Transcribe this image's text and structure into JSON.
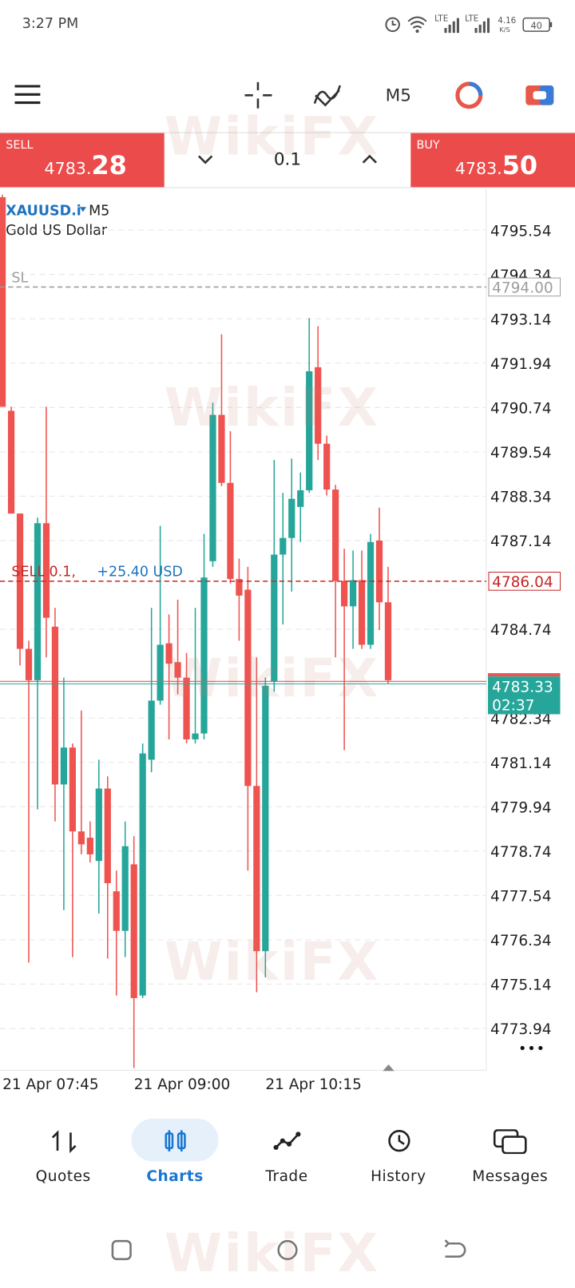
{
  "status_bar": {
    "time": "3:27 PM",
    "lte_1": "LTE",
    "lte_2": "LTE",
    "network_speed": "4.16",
    "speed_unit": "K/S",
    "battery": "40"
  },
  "toolbar": {
    "timeframe": "M5"
  },
  "trade_panel": {
    "sell": {
      "label": "SELL",
      "price_main": "4783.",
      "price_big": "28"
    },
    "volume": "0.1",
    "buy": {
      "label": "BUY",
      "price_main": "4783.",
      "price_big": "50"
    }
  },
  "chart_data": {
    "type": "candlestick",
    "symbol": "XAUUSD.i",
    "timeframe": "M5",
    "description": "Gold US Dollar",
    "categories": [
      "21 Apr 07:45",
      null,
      null,
      null,
      null,
      null,
      null,
      null,
      null,
      null,
      null,
      null,
      null,
      null,
      null,
      "21 Apr 09:00",
      null,
      null,
      null,
      null,
      null,
      null,
      null,
      null,
      null,
      null,
      null,
      null,
      null,
      null,
      "21 Apr 10:15",
      null,
      null,
      null,
      null,
      null,
      null,
      null,
      null,
      null,
      null,
      null,
      null,
      null,
      null
    ],
    "open": [
      4796.43,
      4790.65,
      4787.87,
      4784.21,
      4783.36,
      4787.61,
      4784.81,
      4780.54,
      4781.54,
      4779.27,
      4779.1,
      4778.47,
      4780.43,
      4777.65,
      4776.58,
      4778.38,
      4774.83,
      4781.21,
      4782.81,
      4784.36,
      4783.85,
      4783.43,
      4781.76,
      4781.92,
      4786.58,
      4790.54,
      4788.7,
      4786.1,
      4785.81,
      4780.5,
      4776.03,
      4783.32,
      4786.76,
      4787.21,
      4788.05,
      4788.5,
      4791.83,
      4789.76,
      4788.52,
      4786.05,
      4785.36,
      4786.07,
      4784.32,
      4787.14,
      4785.47
    ],
    "high": [
      4796.5,
      4790.76,
      4787.87,
      4784.43,
      4787.76,
      4790.76,
      4785.32,
      4783.43,
      4781.65,
      4782.54,
      4779.54,
      4781.21,
      4780.76,
      4778.21,
      4779.54,
      4779.14,
      4781.65,
      4785.32,
      4787.54,
      4785.14,
      4785.54,
      4784.1,
      4785.32,
      4787.32,
      4790.87,
      4792.72,
      4790.1,
      4786.65,
      4786.43,
      4783.98,
      4783.43,
      4789.32,
      4788.43,
      4789.36,
      4788.98,
      4793.16,
      4792.94,
      4789.98,
      4788.65,
      4786.92,
      4786.87,
      4786.87,
      4787.32,
      4788.03,
      4786.43
    ],
    "low": [
      4790.76,
      4787.87,
      4783.76,
      4775.72,
      4779.87,
      4783.98,
      4779.54,
      4777.14,
      4775.87,
      4778.65,
      4778.43,
      4777.05,
      4775.83,
      4774.83,
      4775.87,
      4772.87,
      4774.76,
      4780.87,
      4782.7,
      4781.76,
      4782.98,
      4781.65,
      4781.65,
      4781.76,
      4786.43,
      4788.61,
      4785.98,
      4784.43,
      4778.21,
      4774.92,
      4775.32,
      4783.05,
      4784.87,
      4785.76,
      4787.1,
      4788.43,
      4789.32,
      4788.36,
      4783.98,
      4781.47,
      4784.21,
      4784.21,
      4784.21,
      4784.72,
      4783.27
    ],
    "close": [
      4790.76,
      4787.87,
      4784.21,
      4783.36,
      4787.61,
      4785.05,
      4780.54,
      4781.54,
      4779.27,
      4778.92,
      4778.65,
      4780.43,
      4777.87,
      4776.58,
      4778.87,
      4774.76,
      4781.38,
      4782.81,
      4784.32,
      4783.81,
      4783.43,
      4781.76,
      4781.92,
      4786.14,
      4790.54,
      4788.7,
      4786.1,
      4785.65,
      4780.5,
      4776.03,
      4783.21,
      4786.76,
      4787.21,
      4788.27,
      4788.5,
      4791.72,
      4789.76,
      4788.52,
      4786.05,
      4785.36,
      4786.07,
      4784.32,
      4787.1,
      4785.47,
      4783.36
    ],
    "colors": {
      "up": "#26a69a",
      "down": "#ef5350"
    },
    "ylim": [
      4772.81,
      4796.61
    ],
    "yticks": [
      4795.54,
      4794.34,
      4793.14,
      4791.94,
      4790.74,
      4789.54,
      4788.34,
      4787.14,
      4784.74,
      4782.34,
      4781.14,
      4779.94,
      4778.74,
      4777.54,
      4776.34,
      4775.14,
      4773.94
    ],
    "grid": true,
    "levels": [
      {
        "text": "SL",
        "price": {
          "value": 4794,
          "label": "4794.00"
        },
        "color": "#9e9e9e"
      },
      {
        "text": "SELL 0.1,",
        "profit": "+25.40 USD",
        "price": 4786.04,
        "color": "#c62828"
      }
    ],
    "bid": {
      "price": 4783.33,
      "timer": "02:37",
      "color": "#26a69a"
    }
  },
  "bottom_nav": {
    "items": [
      "Quotes",
      "Charts",
      "Trade",
      "History",
      "Messages"
    ],
    "active": 1
  },
  "watermark": "WikiFX"
}
